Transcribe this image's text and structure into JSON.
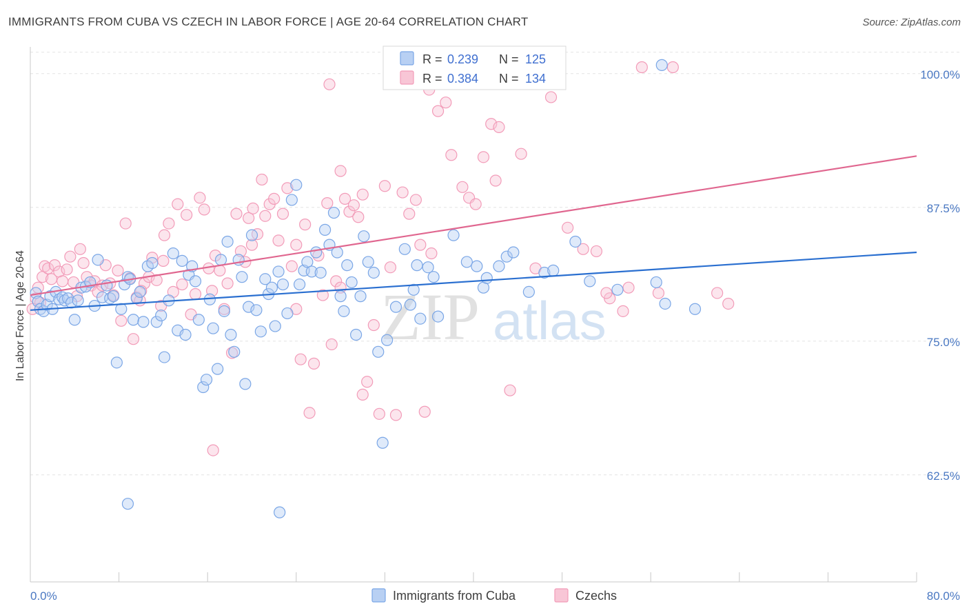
{
  "header": {
    "title": "IMMIGRANTS FROM CUBA VS CZECH IN LABOR FORCE | AGE 20-64 CORRELATION CHART",
    "source": "Source: ZipAtlas.com"
  },
  "watermark": {
    "zip": "ZIP",
    "atlas": "atlas"
  },
  "legend": {
    "r_label": "R =",
    "n_label": "N =",
    "rows": [
      {
        "r": "0.239",
        "n": "125",
        "color": "#7aa6e6"
      },
      {
        "r": "0.384",
        "n": "134",
        "color": "#f29bb8"
      }
    ]
  },
  "chart_data": {
    "type": "scatter",
    "title": "IMMIGRANTS FROM CUBA VS CZECH IN LABOR FORCE | AGE 20-64 CORRELATION CHART",
    "xlabel": "",
    "ylabel": "In Labor Force | Age 20-64",
    "x_ticks": [
      "0.0%",
      "80.0%"
    ],
    "y_ticks": [
      "100.0%",
      "87.5%",
      "75.0%",
      "62.5%"
    ],
    "y_tick_values": [
      100.0,
      87.5,
      75.0,
      62.5
    ],
    "xlim": [
      0,
      80
    ],
    "ylim": [
      52.5,
      102.5
    ],
    "grid": true,
    "legend_position": "top-center",
    "series": [
      {
        "name": "Immigrants from Cuba",
        "color": "#7aa6e6",
        "line_color": "#2a6fd0",
        "trend": [
          [
            0,
            77.9
          ],
          [
            80,
            83.3
          ]
        ],
        "points": [
          [
            0.5,
            79.5
          ],
          [
            0.7,
            78.7
          ],
          [
            0.9,
            78.0
          ],
          [
            1.2,
            77.8
          ],
          [
            1.5,
            78.4
          ],
          [
            1.8,
            79.2
          ],
          [
            2.0,
            78.0
          ],
          [
            2.3,
            79.6
          ],
          [
            2.6,
            78.9
          ],
          [
            2.9,
            79.1
          ],
          [
            3.1,
            78.8
          ],
          [
            3.4,
            79.0
          ],
          [
            3.7,
            78.6
          ],
          [
            4.0,
            77.0
          ],
          [
            4.3,
            78.8
          ],
          [
            4.6,
            80.0
          ],
          [
            5.0,
            80.1
          ],
          [
            5.4,
            80.5
          ],
          [
            5.8,
            78.3
          ],
          [
            6.1,
            82.6
          ],
          [
            6.5,
            79.1
          ],
          [
            6.9,
            80.2
          ],
          [
            7.2,
            79.0
          ],
          [
            7.5,
            79.2
          ],
          [
            7.8,
            73.0
          ],
          [
            8.2,
            78.0
          ],
          [
            8.5,
            80.3
          ],
          [
            8.8,
            81.0
          ],
          [
            9.0,
            80.8
          ],
          [
            9.3,
            77.0
          ],
          [
            9.6,
            79.0
          ],
          [
            9.9,
            79.6
          ],
          [
            10.2,
            76.8
          ],
          [
            10.6,
            82.0
          ],
          [
            11.0,
            82.3
          ],
          [
            11.4,
            76.8
          ],
          [
            11.8,
            77.4
          ],
          [
            12.1,
            73.5
          ],
          [
            12.5,
            78.8
          ],
          [
            12.9,
            83.2
          ],
          [
            13.3,
            76.0
          ],
          [
            13.7,
            82.5
          ],
          [
            14.0,
            75.6
          ],
          [
            14.3,
            81.2
          ],
          [
            14.6,
            82.0
          ],
          [
            14.9,
            80.6
          ],
          [
            15.2,
            77.0
          ],
          [
            15.6,
            70.7
          ],
          [
            15.9,
            71.4
          ],
          [
            16.2,
            78.9
          ],
          [
            16.5,
            76.2
          ],
          [
            16.9,
            72.4
          ],
          [
            17.2,
            82.6
          ],
          [
            17.5,
            77.8
          ],
          [
            17.8,
            84.3
          ],
          [
            18.1,
            75.6
          ],
          [
            18.4,
            74.0
          ],
          [
            18.8,
            82.6
          ],
          [
            19.1,
            81.0
          ],
          [
            19.4,
            71.0
          ],
          [
            19.7,
            78.2
          ],
          [
            20.0,
            84.9
          ],
          [
            20.4,
            77.9
          ],
          [
            20.8,
            75.9
          ],
          [
            21.2,
            80.8
          ],
          [
            21.5,
            79.4
          ],
          [
            21.8,
            80.0
          ],
          [
            22.1,
            76.4
          ],
          [
            22.4,
            81.5
          ],
          [
            22.8,
            80.3
          ],
          [
            23.2,
            77.6
          ],
          [
            23.6,
            88.2
          ],
          [
            24.0,
            89.6
          ],
          [
            24.3,
            80.3
          ],
          [
            24.7,
            81.6
          ],
          [
            25.0,
            82.4
          ],
          [
            25.4,
            81.5
          ],
          [
            25.8,
            83.3
          ],
          [
            26.2,
            81.4
          ],
          [
            26.6,
            85.4
          ],
          [
            27.0,
            84.0
          ],
          [
            27.4,
            87.0
          ],
          [
            27.7,
            83.3
          ],
          [
            28.0,
            79.2
          ],
          [
            28.3,
            77.8
          ],
          [
            28.6,
            82.1
          ],
          [
            29.0,
            80.5
          ],
          [
            29.4,
            75.6
          ],
          [
            29.8,
            79.2
          ],
          [
            30.1,
            84.8
          ],
          [
            30.5,
            82.4
          ],
          [
            31.0,
            81.4
          ],
          [
            31.4,
            74.0
          ],
          [
            31.8,
            65.5
          ],
          [
            32.2,
            75.1
          ],
          [
            33.0,
            78.2
          ],
          [
            33.8,
            83.6
          ],
          [
            34.3,
            78.4
          ],
          [
            34.6,
            79.8
          ],
          [
            34.9,
            82.1
          ],
          [
            35.2,
            77.1
          ],
          [
            35.9,
            81.9
          ],
          [
            36.4,
            81.0
          ],
          [
            36.8,
            77.3
          ],
          [
            38.2,
            84.9
          ],
          [
            39.4,
            82.4
          ],
          [
            40.3,
            82.0
          ],
          [
            40.9,
            80.0
          ],
          [
            41.2,
            80.9
          ],
          [
            42.3,
            82.0
          ],
          [
            43.0,
            82.9
          ],
          [
            43.6,
            83.3
          ],
          [
            45.0,
            79.6
          ],
          [
            46.4,
            81.4
          ],
          [
            47.2,
            81.6
          ],
          [
            49.2,
            84.3
          ],
          [
            50.5,
            80.6
          ],
          [
            53.0,
            79.8
          ],
          [
            56.5,
            80.5
          ],
          [
            57.3,
            78.5
          ],
          [
            60.0,
            78.0
          ],
          [
            8.8,
            59.8
          ],
          [
            22.5,
            59.0
          ],
          [
            57.0,
            100.8
          ]
        ]
      },
      {
        "name": "Czechs",
        "color": "#f29bb8",
        "line_color": "#e0668f",
        "trend": [
          [
            0,
            79.3
          ],
          [
            80,
            92.3
          ]
        ],
        "points": [
          [
            0.2,
            78.0
          ],
          [
            0.5,
            79.0
          ],
          [
            0.7,
            80.0
          ],
          [
            0.9,
            78.6
          ],
          [
            1.1,
            81.0
          ],
          [
            1.3,
            82.0
          ],
          [
            1.6,
            81.8
          ],
          [
            1.9,
            80.8
          ],
          [
            2.2,
            82.1
          ],
          [
            2.6,
            81.5
          ],
          [
            2.9,
            80.6
          ],
          [
            3.3,
            81.7
          ],
          [
            3.6,
            82.9
          ],
          [
            3.9,
            80.5
          ],
          [
            4.2,
            79.2
          ],
          [
            4.5,
            83.6
          ],
          [
            4.8,
            82.3
          ],
          [
            5.1,
            81.0
          ],
          [
            5.5,
            80.2
          ],
          [
            5.8,
            80.6
          ],
          [
            6.1,
            79.6
          ],
          [
            6.5,
            80.2
          ],
          [
            6.8,
            82.1
          ],
          [
            7.2,
            80.4
          ],
          [
            7.5,
            79.3
          ],
          [
            7.9,
            81.6
          ],
          [
            8.2,
            76.9
          ],
          [
            8.6,
            86.0
          ],
          [
            9.0,
            80.9
          ],
          [
            9.3,
            75.2
          ],
          [
            9.6,
            79.1
          ],
          [
            9.9,
            78.8
          ],
          [
            10.3,
            80.4
          ],
          [
            10.7,
            81.0
          ],
          [
            11.0,
            82.8
          ],
          [
            11.4,
            80.7
          ],
          [
            11.8,
            78.3
          ],
          [
            12.1,
            84.9
          ],
          [
            12.5,
            86.0
          ],
          [
            12.9,
            79.6
          ],
          [
            13.3,
            87.8
          ],
          [
            13.7,
            80.3
          ],
          [
            14.1,
            86.8
          ],
          [
            14.5,
            77.5
          ],
          [
            14.9,
            79.4
          ],
          [
            15.3,
            88.4
          ],
          [
            15.7,
            87.3
          ],
          [
            16.1,
            81.8
          ],
          [
            16.4,
            79.7
          ],
          [
            16.7,
            83.0
          ],
          [
            17.1,
            81.6
          ],
          [
            17.5,
            78.0
          ],
          [
            17.8,
            80.4
          ],
          [
            18.2,
            73.9
          ],
          [
            18.6,
            86.9
          ],
          [
            19.0,
            83.4
          ],
          [
            19.4,
            82.4
          ],
          [
            19.7,
            86.5
          ],
          [
            20.1,
            87.4
          ],
          [
            20.5,
            85.0
          ],
          [
            20.9,
            90.1
          ],
          [
            21.2,
            86.7
          ],
          [
            21.6,
            87.8
          ],
          [
            22.0,
            88.3
          ],
          [
            22.4,
            84.4
          ],
          [
            22.8,
            86.9
          ],
          [
            23.2,
            89.3
          ],
          [
            23.6,
            82.0
          ],
          [
            24.0,
            84.0
          ],
          [
            24.4,
            73.3
          ],
          [
            24.8,
            85.9
          ],
          [
            25.2,
            68.3
          ],
          [
            25.6,
            72.9
          ],
          [
            26.0,
            83.0
          ],
          [
            26.4,
            79.3
          ],
          [
            26.8,
            87.9
          ],
          [
            27.2,
            74.7
          ],
          [
            27.6,
            80.6
          ],
          [
            28.0,
            90.9
          ],
          [
            28.4,
            88.3
          ],
          [
            28.8,
            87.1
          ],
          [
            29.2,
            87.7
          ],
          [
            29.6,
            86.6
          ],
          [
            30.0,
            88.7
          ],
          [
            30.4,
            71.2
          ],
          [
            31.0,
            76.5
          ],
          [
            31.5,
            68.2
          ],
          [
            32.0,
            89.5
          ],
          [
            32.5,
            81.9
          ],
          [
            33.0,
            68.1
          ],
          [
            33.6,
            88.9
          ],
          [
            34.2,
            86.9
          ],
          [
            34.8,
            88.2
          ],
          [
            35.2,
            84.0
          ],
          [
            35.6,
            68.4
          ],
          [
            36.2,
            83.2
          ],
          [
            36.8,
            96.5
          ],
          [
            37.5,
            97.3
          ],
          [
            38.0,
            92.4
          ],
          [
            39.0,
            89.4
          ],
          [
            39.6,
            88.4
          ],
          [
            40.2,
            87.8
          ],
          [
            40.9,
            92.2
          ],
          [
            41.6,
            95.3
          ],
          [
            42.3,
            95.0
          ],
          [
            43.3,
            70.4
          ],
          [
            44.3,
            92.5
          ],
          [
            45.6,
            81.8
          ],
          [
            47.0,
            97.8
          ],
          [
            48.5,
            85.6
          ],
          [
            49.9,
            83.6
          ],
          [
            51.1,
            83.4
          ],
          [
            52.3,
            79.0
          ],
          [
            53.5,
            77.8
          ],
          [
            55.2,
            100.6
          ],
          [
            56.7,
            79.5
          ],
          [
            58.0,
            100.6
          ],
          [
            33.8,
            100.3
          ],
          [
            44.5,
            100.6
          ],
          [
            27.0,
            99.0
          ],
          [
            36.0,
            98.5
          ],
          [
            16.5,
            64.8
          ],
          [
            28.0,
            80.0
          ],
          [
            10.0,
            79.7
          ],
          [
            24.0,
            78.0
          ],
          [
            12.0,
            82.5
          ],
          [
            20.0,
            84.0
          ],
          [
            42.0,
            90.0
          ],
          [
            62.0,
            79.5
          ],
          [
            63.0,
            78.5
          ],
          [
            54.0,
            80.0
          ],
          [
            52.0,
            79.5
          ],
          [
            30.0,
            70.0
          ]
        ]
      }
    ]
  }
}
